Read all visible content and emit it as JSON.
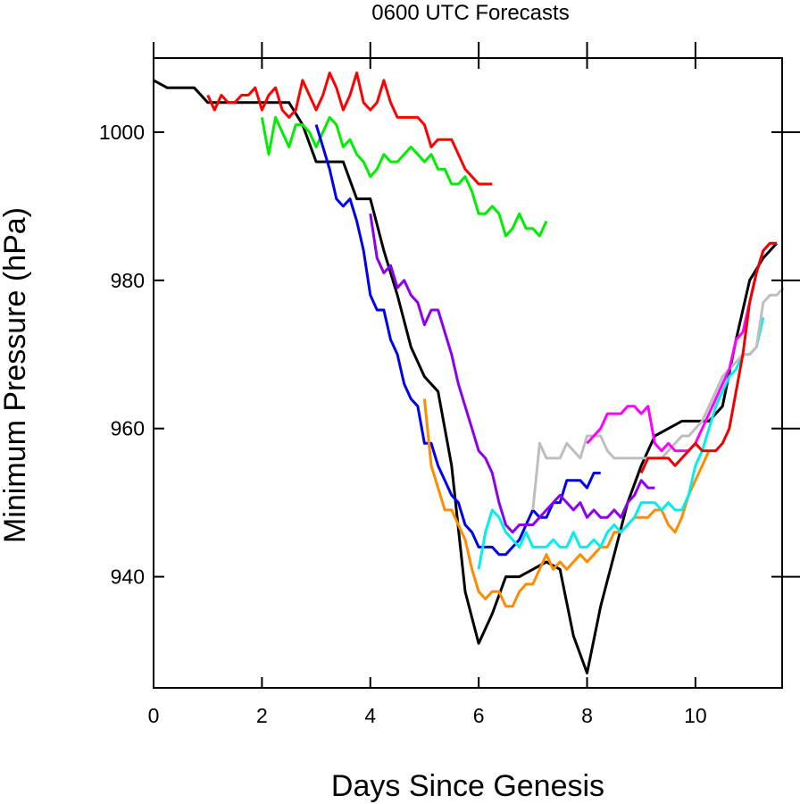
{
  "chart_data": {
    "type": "line",
    "title": "0600 UTC Forecasts",
    "xlabel": "Days Since Genesis",
    "ylabel": "Minimum Pressure (hPa)",
    "xlim": [
      0,
      11.6
    ],
    "ylim": [
      925,
      1010
    ],
    "xticks": [
      0,
      2,
      4,
      6,
      8,
      10
    ],
    "xtick_labels": [
      "0",
      "2",
      "4",
      "6",
      "8",
      "10"
    ],
    "yticks": [
      940,
      960,
      980,
      1000
    ],
    "ytick_labels": [
      "940",
      "960",
      "980",
      "1000"
    ],
    "grid": false,
    "legend": "none",
    "series": [
      {
        "color": "#000000",
        "x": [
          0,
          0.25,
          0.5,
          0.75,
          1,
          1.25,
          1.5,
          1.75,
          2,
          2.25,
          2.5,
          2.75,
          3,
          3.25,
          3.5,
          3.75,
          4,
          4.25,
          4.5,
          4.75,
          5,
          5.25,
          5.5,
          5.75,
          6,
          6.25,
          6.5,
          6.75,
          7,
          7.25,
          7.5,
          7.75,
          8,
          8.25,
          8.5,
          8.75,
          9,
          9.25,
          9.5,
          9.75,
          10,
          10.25,
          10.5,
          10.75,
          11,
          11.25,
          11.5
        ],
        "y": [
          1007,
          1006,
          1006,
          1006,
          1004,
          1004,
          1004,
          1004,
          1004,
          1004,
          1004,
          1001,
          996,
          996,
          996,
          991,
          991,
          984,
          978,
          971,
          967,
          965,
          955,
          938,
          931,
          935,
          940,
          940,
          941,
          942,
          941,
          932,
          927,
          936,
          943,
          950,
          955,
          959,
          960,
          961,
          961,
          961,
          963,
          972,
          980,
          983,
          985
        ]
      },
      {
        "color": "#ff0000",
        "x": [
          1,
          1.125,
          1.25,
          1.375,
          1.5,
          1.625,
          1.75,
          1.875,
          2,
          2.125,
          2.25,
          2.375,
          2.5,
          2.625,
          2.75,
          2.875,
          3,
          3.125,
          3.25,
          3.375,
          3.5,
          3.625,
          3.75,
          3.875,
          4,
          4.125,
          4.25,
          4.375,
          4.5,
          4.625,
          4.75,
          4.875,
          5,
          5.125,
          5.25,
          5.375,
          5.5,
          5.625,
          5.75,
          5.875,
          6,
          6.125,
          6.25
        ],
        "y": [
          1005,
          1003,
          1005,
          1004,
          1004,
          1005,
          1005,
          1006,
          1003,
          1005,
          1006,
          1003,
          1002,
          1003,
          1007,
          1005,
          1003,
          1005,
          1008,
          1006,
          1003,
          1005,
          1008,
          1004,
          1003,
          1004,
          1007,
          1004,
          1002,
          1002,
          1002,
          1002,
          1001,
          998,
          999,
          999,
          999,
          997,
          995,
          994,
          993,
          993,
          993
        ]
      },
      {
        "color": "#00ee00",
        "x": [
          2,
          2.125,
          2.25,
          2.375,
          2.5,
          2.625,
          2.75,
          2.875,
          3,
          3.125,
          3.25,
          3.375,
          3.5,
          3.625,
          3.75,
          3.875,
          4,
          4.125,
          4.25,
          4.375,
          4.5,
          4.625,
          4.75,
          4.875,
          5,
          5.125,
          5.25,
          5.375,
          5.5,
          5.625,
          5.75,
          5.875,
          6,
          6.125,
          6.25,
          6.375,
          6.5,
          6.625,
          6.75,
          6.875,
          7,
          7.125,
          7.25
        ],
        "y": [
          1002,
          997,
          1002,
          1000,
          998,
          1001,
          1001,
          1000,
          998,
          1000,
          1002,
          1001,
          998,
          999,
          997,
          996,
          994,
          995,
          997,
          996,
          996,
          997,
          998,
          997,
          996,
          997,
          995,
          995,
          993,
          993,
          994,
          992,
          989,
          989,
          990,
          989,
          986,
          987,
          989,
          987,
          987,
          986,
          988
        ]
      },
      {
        "color": "#0000ee",
        "x": [
          3,
          3.125,
          3.25,
          3.375,
          3.5,
          3.625,
          3.75,
          3.875,
          4,
          4.125,
          4.25,
          4.375,
          4.5,
          4.625,
          4.75,
          4.875,
          5,
          5.125,
          5.25,
          5.375,
          5.5,
          5.625,
          5.75,
          5.875,
          6,
          6.125,
          6.25,
          6.375,
          6.5,
          6.625,
          6.75,
          6.875,
          7,
          7.125,
          7.25,
          7.375,
          7.5,
          7.625,
          7.75,
          7.875,
          8,
          8.125,
          8.25
        ],
        "y": [
          1001,
          998,
          995,
          991,
          990,
          991,
          988,
          984,
          978,
          976,
          976,
          972,
          970,
          966,
          964,
          963,
          958,
          958,
          955,
          953,
          951,
          950,
          947,
          946,
          944,
          944,
          944,
          943,
          943,
          944,
          945,
          947,
          949,
          948,
          948,
          950,
          950,
          953,
          953,
          953,
          952,
          954,
          954
        ]
      },
      {
        "color": "#8b00ee",
        "x": [
          4,
          4.125,
          4.25,
          4.375,
          4.5,
          4.625,
          4.75,
          4.875,
          5,
          5.125,
          5.25,
          5.375,
          5.5,
          5.625,
          5.75,
          5.875,
          6,
          6.125,
          6.25,
          6.375,
          6.5,
          6.625,
          6.75,
          6.875,
          7,
          7.125,
          7.25,
          7.375,
          7.5,
          7.625,
          7.75,
          7.875,
          8,
          8.125,
          8.25,
          8.375,
          8.5,
          8.625,
          8.75,
          8.875,
          9,
          9.125,
          9.25
        ],
        "y": [
          989,
          983,
          981,
          982,
          979,
          980,
          978,
          977,
          974,
          976,
          976,
          973,
          970,
          966,
          963,
          960,
          957,
          956,
          954,
          950,
          947,
          946,
          947,
          947,
          947,
          948,
          949,
          950,
          951,
          950,
          949,
          950,
          948,
          949,
          948,
          948,
          949,
          948,
          950,
          951,
          953,
          952,
          952
        ]
      },
      {
        "color": "#ff8c00",
        "x": [
          5,
          5.125,
          5.25,
          5.375,
          5.5,
          5.625,
          5.75,
          5.875,
          6,
          6.125,
          6.25,
          6.375,
          6.5,
          6.625,
          6.75,
          6.875,
          7,
          7.125,
          7.25,
          7.375,
          7.5,
          7.625,
          7.75,
          7.875,
          8,
          8.125,
          8.25,
          8.375,
          8.5,
          8.625,
          8.75,
          8.875,
          9,
          9.125,
          9.25,
          9.375,
          9.5,
          9.625,
          9.75,
          9.875,
          10,
          10.125,
          10.25
        ],
        "y": [
          964,
          955,
          952,
          949,
          949,
          947,
          945,
          941,
          938,
          937,
          938,
          938,
          936,
          936,
          938,
          939,
          939,
          941,
          943,
          941,
          942,
          941,
          942,
          943,
          942,
          943,
          944,
          944,
          946,
          946,
          947,
          948,
          948,
          948,
          949,
          949,
          947,
          946,
          948,
          951,
          953,
          955,
          957
        ]
      },
      {
        "color": "#00eeee",
        "x": [
          6,
          6.125,
          6.25,
          6.375,
          6.5,
          6.625,
          6.75,
          6.875,
          7,
          7.125,
          7.25,
          7.375,
          7.5,
          7.625,
          7.75,
          7.875,
          8,
          8.125,
          8.25,
          8.375,
          8.5,
          8.625,
          8.75,
          8.875,
          9,
          9.125,
          9.25,
          9.375,
          9.5,
          9.625,
          9.75,
          9.875,
          10,
          10.125,
          10.25,
          10.375,
          10.5,
          10.625,
          10.75,
          10.875,
          11,
          11.125,
          11.25
        ],
        "y": [
          941,
          946,
          949,
          948,
          946,
          945,
          944,
          946,
          944,
          944,
          944,
          945,
          944,
          944,
          946,
          944,
          944,
          945,
          944,
          946,
          947,
          946,
          947,
          948,
          950,
          950,
          950,
          949,
          950,
          949,
          949,
          951,
          955,
          957,
          960,
          963,
          965,
          967,
          968,
          970,
          970,
          971,
          975
        ]
      },
      {
        "color": "#bebebe",
        "x": [
          7,
          7.125,
          7.25,
          7.375,
          7.5,
          7.625,
          7.75,
          7.875,
          8,
          8.125,
          8.25,
          8.375,
          8.5,
          8.625,
          8.75,
          8.875,
          9,
          9.125,
          9.25,
          9.375,
          9.5,
          9.625,
          9.75,
          9.875,
          10,
          10.125,
          10.25,
          10.375,
          10.5,
          10.625,
          10.75,
          10.875,
          11,
          11.125,
          11.25,
          11.375,
          11.5,
          11.625
        ],
        "y": [
          949,
          958,
          956,
          956,
          956,
          958,
          957,
          956,
          959,
          959,
          959,
          957,
          956,
          956,
          956,
          956,
          956,
          956,
          956,
          956,
          957,
          958,
          959,
          959,
          960,
          961,
          963,
          965,
          967,
          968,
          969,
          970,
          970,
          971,
          977,
          978,
          978,
          979
        ]
      },
      {
        "color": "#ff00ff",
        "x": [
          8,
          8.125,
          8.25,
          8.375,
          8.5,
          8.625,
          8.75,
          8.875,
          9,
          9.125,
          9.25,
          9.375,
          9.5,
          9.625,
          9.75,
          9.875,
          10,
          10.125,
          10.25,
          10.375,
          10.5,
          10.625,
          10.75,
          10.875,
          11,
          11.125,
          11.25,
          11.375,
          11.5
        ],
        "y": [
          958,
          959,
          960,
          962,
          962,
          962,
          963,
          963,
          962,
          963,
          958,
          957,
          958,
          957,
          957,
          957,
          958,
          960,
          962,
          964,
          966,
          968,
          972,
          973,
          977,
          981,
          984,
          985,
          985
        ]
      },
      {
        "color": "#ee0000",
        "x": [
          9,
          9.125,
          9.25,
          9.375,
          9.5,
          9.625,
          9.75,
          9.875,
          10,
          10.125,
          10.25,
          10.375,
          10.5,
          10.625,
          10.75,
          10.875,
          11,
          11.125,
          11.25,
          11.375,
          11.5
        ],
        "y": [
          954,
          956,
          956,
          956,
          956,
          955,
          956,
          957,
          958,
          957,
          957,
          957,
          958,
          960,
          965,
          970,
          977,
          981,
          984,
          985,
          985
        ]
      }
    ]
  }
}
